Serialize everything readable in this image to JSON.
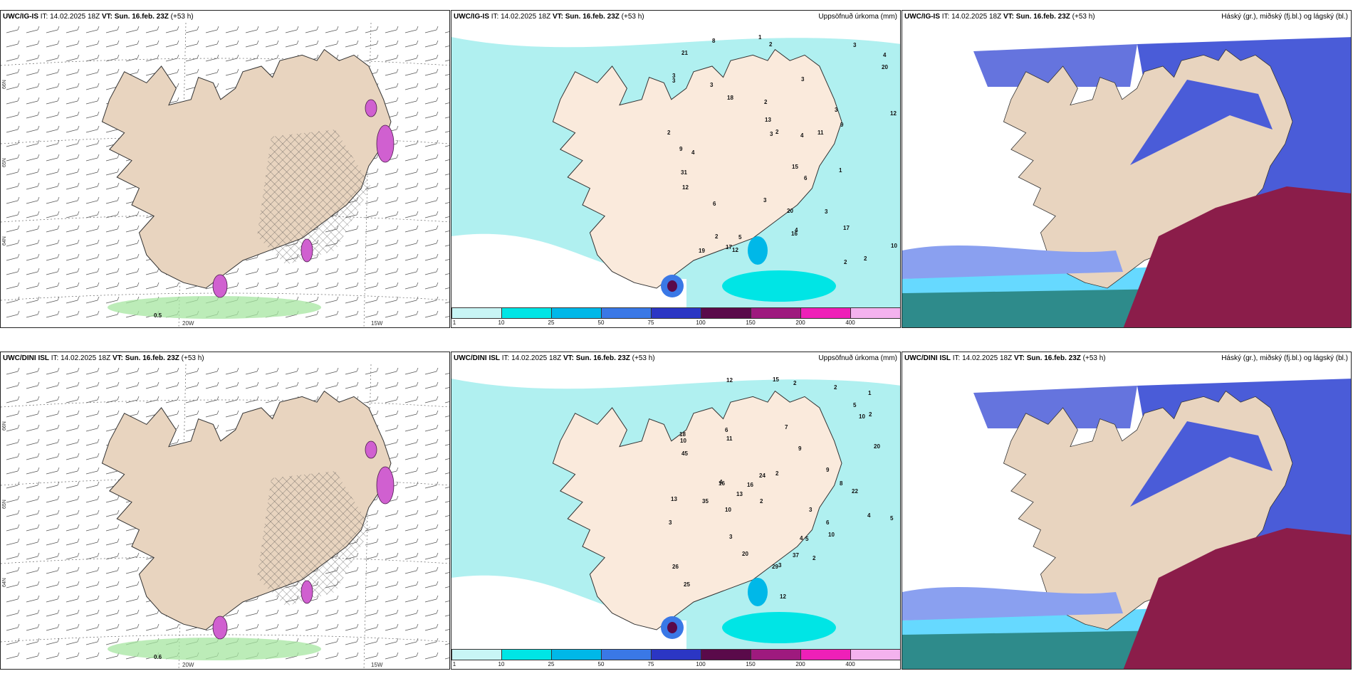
{
  "panels": [
    {
      "row": 0,
      "col": 0,
      "model": "UWC/IG-IS",
      "it_label": "IT:",
      "it": "14.02.2025 18Z",
      "vt_label": "VT:",
      "vt": "Sun. 16.feb. 23Z",
      "lead": "(+53 h)",
      "right": "",
      "type": "wind",
      "note": "0.5",
      "lat_labels": [
        "66N",
        "65N",
        "64N"
      ],
      "lon_labels": [
        "20W",
        "15W"
      ]
    },
    {
      "row": 0,
      "col": 1,
      "model": "UWC/IG-IS",
      "it_label": "IT:",
      "it": "14.02.2025 18Z",
      "vt_label": "VT:",
      "vt": "Sun. 16.feb. 23Z",
      "lead": "(+53 h)",
      "right": "Uppsöfnuð úrkoma (mm)",
      "type": "precip",
      "values": [
        "2",
        "2",
        "3",
        "4",
        "3",
        "2",
        "4",
        "3",
        "2",
        "3",
        "2",
        "1",
        "1",
        "3",
        "3",
        "6",
        "4",
        "9",
        "15",
        "3",
        "3",
        "17",
        "20",
        "13",
        "2",
        "3",
        "6",
        "8",
        "12",
        "16",
        "31",
        "2",
        "4",
        "19",
        "17",
        "12",
        "9",
        "21",
        "5",
        "18",
        "20",
        "11",
        "10",
        "12"
      ]
    },
    {
      "row": 0,
      "col": 2,
      "model": "UWC/IG-IS",
      "it_label": "IT:",
      "it": "14.02.2025 18Z",
      "vt_label": "VT:",
      "vt": "Sun. 16.feb. 23Z",
      "lead": "(+53 h)",
      "right": "Háský (gr.), miðský (fj.bl.) og lágský (bl.)",
      "type": "cloud"
    },
    {
      "row": 1,
      "col": 0,
      "model": "UWC/DINI ISL",
      "it_label": "IT:",
      "it": "14.02.2025 18Z",
      "vt_label": "VT:",
      "vt": "Sun. 16.feb. 23Z",
      "lead": "(+53 h)",
      "right": "",
      "type": "wind",
      "note": "0.6",
      "lat_labels": [
        "66N",
        "65N",
        "64N"
      ],
      "lon_labels": [
        "20W",
        "15W"
      ]
    },
    {
      "row": 1,
      "col": 1,
      "model": "UWC/DINI ISL",
      "it_label": "IT:",
      "it": "14.02.2025 18Z",
      "vt_label": "VT:",
      "vt": "Sun. 16.feb. 23Z",
      "lead": "(+53 h)",
      "right": "Uppsöfnuð úrkoma (mm)",
      "type": "precip",
      "values": [
        "2",
        "2",
        "2",
        "4",
        "16",
        "3",
        "3",
        "1",
        "10",
        "5",
        "2",
        "4",
        "3",
        "6",
        "7",
        "5",
        "8",
        "20",
        "9",
        "10",
        "2",
        "4",
        "25",
        "20",
        "45",
        "37",
        "26",
        "29",
        "13",
        "35",
        "24",
        "22",
        "18",
        "16",
        "12",
        "10",
        "11",
        "9",
        "12",
        "10",
        "15",
        "6",
        "13",
        "2",
        "3",
        "5"
      ]
    },
    {
      "row": 1,
      "col": 2,
      "model": "UWC/DINI ISL",
      "it_label": "IT:",
      "it": "14.02.2025 18Z",
      "vt_label": "VT:",
      "vt": "Sun. 16.feb. 23Z",
      "lead": "(+53 h)",
      "right": "Háský (gr.), miðský (fj.bl.) og lágský (bl.)",
      "type": "cloud"
    }
  ],
  "legend": {
    "ticks": [
      "1",
      "10",
      "25",
      "50",
      "75",
      "100",
      "150",
      "200",
      "400"
    ],
    "colors": [
      "#c8f5f5",
      "#00e5e5",
      "#00b8e8",
      "#3a78e6",
      "#2b36c4",
      "#5a0a4a",
      "#9e1a7e",
      "#ee20b8",
      "#f4b2ee"
    ]
  },
  "colors": {
    "land": "#e8d4bf",
    "sea_precip": "#b0f0f0",
    "cloud_high": "#4a5cd8",
    "cloud_mid": "#8aa0f0",
    "cloud_low": "#8b1d4a",
    "cloud_edge": "#00bfff"
  }
}
